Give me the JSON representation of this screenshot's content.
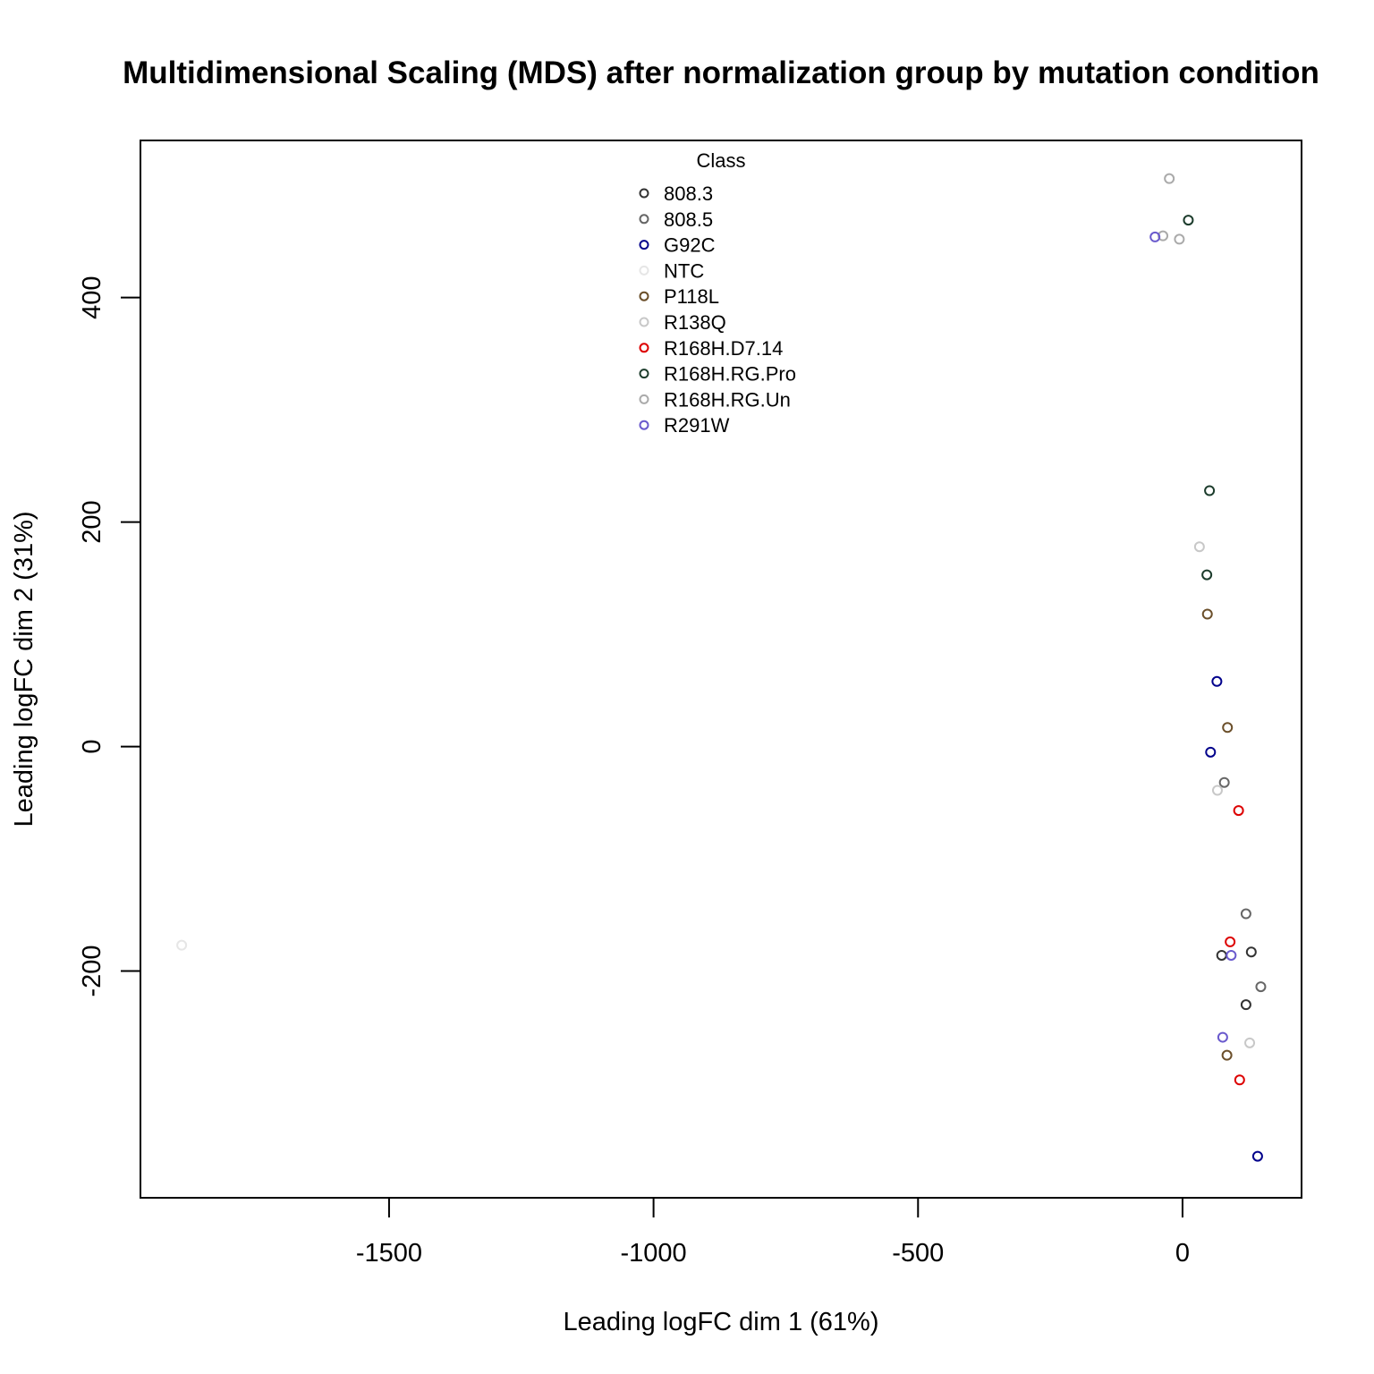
{
  "chart_data": {
    "type": "scatter",
    "title": "Multidimensional Scaling (MDS) after normalization group by mutation condition",
    "xlabel": "Leading logFC dim 1 (61%)",
    "ylabel": "Leading logFC dim 2 (31%)",
    "xlim": [
      -1970,
      225
    ],
    "ylim": [
      -402,
      540
    ],
    "xticks": [
      -1500,
      -1000,
      -500,
      0
    ],
    "yticks": [
      -200,
      0,
      200,
      400
    ],
    "grid": false,
    "legend": {
      "title": "Class",
      "placement": "top-center",
      "entries": [
        {
          "name": "808.3",
          "color": "#333333"
        },
        {
          "name": "808.5",
          "color": "#666666"
        },
        {
          "name": "G92C",
          "color": "#00008b"
        },
        {
          "name": "NTC",
          "color": "#e6e6e6"
        },
        {
          "name": "P118L",
          "color": "#6b4f2a"
        },
        {
          "name": "R138Q",
          "color": "#c8c8c8"
        },
        {
          "name": "R168H.D7.14",
          "color": "#dd0000"
        },
        {
          "name": "R168H.RG.Pro",
          "color": "#1c3c2c"
        },
        {
          "name": "R168H.RG.Un",
          "color": "#aaaaaa"
        },
        {
          "name": "R291W",
          "color": "#6a5acd"
        }
      ]
    },
    "series": [
      {
        "name": "808.3",
        "color": "#333333",
        "points": [
          [
            74,
            -186
          ],
          [
            130,
            -183
          ],
          [
            120,
            -230
          ]
        ]
      },
      {
        "name": "808.5",
        "color": "#666666",
        "points": [
          [
            79,
            -32
          ],
          [
            120,
            -149
          ],
          [
            148,
            -214
          ]
        ]
      },
      {
        "name": "G92C",
        "color": "#00008b",
        "points": [
          [
            65,
            58
          ],
          [
            53,
            -5
          ],
          [
            142,
            -365
          ]
        ]
      },
      {
        "name": "NTC",
        "color": "#e6e6e6",
        "points": [
          [
            -1892,
            -177
          ]
        ]
      },
      {
        "name": "P118L",
        "color": "#6b4f2a",
        "points": [
          [
            47,
            118
          ],
          [
            85,
            17
          ],
          [
            84,
            -275
          ]
        ]
      },
      {
        "name": "R138Q",
        "color": "#c8c8c8",
        "points": [
          [
            32,
            178
          ],
          [
            66,
            -39
          ],
          [
            127,
            -264
          ]
        ]
      },
      {
        "name": "R168H.D7.14",
        "color": "#dd0000",
        "points": [
          [
            106,
            -57
          ],
          [
            90,
            -174
          ],
          [
            108,
            -297
          ]
        ]
      },
      {
        "name": "R168H.RG.Pro",
        "color": "#1c3c2c",
        "points": [
          [
            11,
            469
          ],
          [
            51,
            228
          ],
          [
            46,
            153
          ]
        ]
      },
      {
        "name": "R168H.RG.Un",
        "color": "#aaaaaa",
        "points": [
          [
            -25,
            506
          ],
          [
            -6,
            452
          ],
          [
            -37,
            455
          ]
        ]
      },
      {
        "name": "R291W",
        "color": "#6a5acd",
        "points": [
          [
            -52,
            454
          ],
          [
            92,
            -186
          ],
          [
            76,
            -259
          ]
        ]
      }
    ]
  }
}
